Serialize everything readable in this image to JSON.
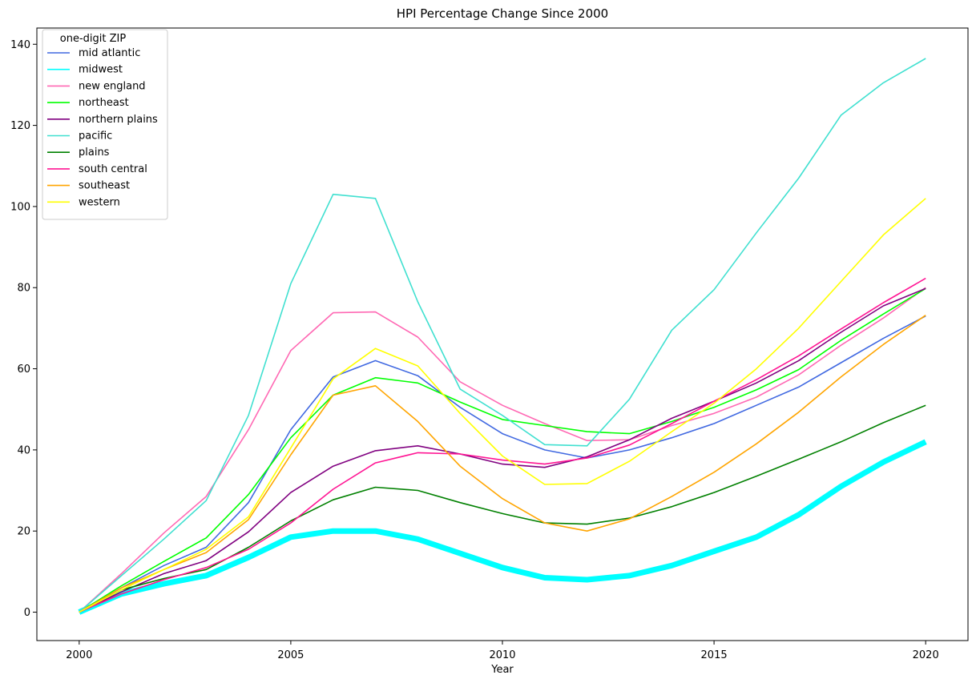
{
  "chart_data": {
    "type": "line",
    "title": "HPI Percentage Change Since 2000",
    "xlabel": "Year",
    "ylabel": "",
    "xlim": [
      1999,
      2021
    ],
    "ylim": [
      -7,
      144
    ],
    "x_ticks": [
      2000,
      2005,
      2010,
      2015,
      2020
    ],
    "y_ticks": [
      0,
      20,
      40,
      60,
      80,
      100,
      120,
      140
    ],
    "grid": false,
    "legend": {
      "title": "one-digit ZIP",
      "placement": "top-left"
    },
    "x": [
      2000,
      2001,
      2002,
      2003,
      2004,
      2005,
      2006,
      2007,
      2008,
      2009,
      2010,
      2011,
      2012,
      2013,
      2014,
      2015,
      2016,
      2017,
      2018,
      2019,
      2020
    ],
    "series": [
      {
        "name": "mid atlantic",
        "color": "#4169e1",
        "width": 1.6,
        "values": [
          0,
          6,
          11.5,
          16,
          27,
          45,
          58,
          62,
          58.3,
          50.5,
          44,
          40,
          38,
          40,
          43,
          46.5,
          51,
          55.5,
          61.5,
          67.5,
          73
        ]
      },
      {
        "name": "midwest",
        "color": "#00ffff",
        "width": 1.6,
        "values": [
          0,
          4.5,
          7,
          9,
          13.5,
          18.5,
          20,
          20,
          18,
          14.5,
          11,
          8.5,
          8,
          9,
          11.5,
          15,
          18.5,
          24,
          31,
          37,
          42
        ]
      },
      {
        "name": "new england",
        "color": "#ff69b4",
        "width": 1.6,
        "values": [
          0,
          9.5,
          19.5,
          28.5,
          45,
          64.5,
          73.8,
          74,
          67.8,
          56.8,
          51,
          46.5,
          42.3,
          42.5,
          46,
          49,
          53,
          58.5,
          65.8,
          72.5,
          80
        ]
      },
      {
        "name": "northeast",
        "color": "#00ff00",
        "width": 1.6,
        "values": [
          0,
          6.5,
          12.5,
          18.3,
          29,
          43,
          53.5,
          57.8,
          56.5,
          51.8,
          47.5,
          46,
          44.5,
          44,
          47,
          50.5,
          54.8,
          59.8,
          67,
          73.5,
          79.8
        ]
      },
      {
        "name": "northern plains",
        "color": "#800080",
        "width": 1.6,
        "values": [
          0,
          5,
          9.5,
          12.7,
          19.8,
          29.5,
          36,
          39.8,
          41,
          39,
          36.5,
          35.7,
          38.3,
          42.5,
          47.8,
          52,
          56.5,
          62,
          69,
          75.5,
          79.8
        ]
      },
      {
        "name": "pacific",
        "color": "#40e0d0",
        "width": 1.6,
        "values": [
          0,
          9,
          18,
          27.5,
          48.5,
          81,
          103,
          102,
          76.5,
          55,
          48.5,
          41.3,
          41,
          52.5,
          69.5,
          79.5,
          93.5,
          107,
          122.5,
          130.5,
          136.5
        ]
      },
      {
        "name": "plains",
        "color": "#008000",
        "width": 1.6,
        "values": [
          0,
          5.5,
          8.3,
          10.5,
          16,
          22.5,
          27.7,
          30.8,
          30,
          27,
          24.3,
          22,
          21.7,
          23.2,
          26,
          29.5,
          33.5,
          37.7,
          42,
          46.7,
          51
        ]
      },
      {
        "name": "south central",
        "color": "#ff1493",
        "width": 1.6,
        "values": [
          0,
          4.5,
          8,
          11,
          15.5,
          22,
          30.3,
          36.8,
          39.3,
          39,
          37.5,
          36.5,
          38,
          41.2,
          46.5,
          52,
          57.3,
          63.2,
          69.8,
          76.3,
          82.3
        ]
      },
      {
        "name": "southeast",
        "color": "#ffa500",
        "width": 1.6,
        "values": [
          0,
          6,
          10.5,
          14.7,
          22.8,
          38.8,
          53.5,
          55.8,
          47,
          36,
          28,
          22,
          20,
          23,
          28.5,
          34.5,
          41.5,
          49.3,
          58,
          66,
          73.2
        ]
      },
      {
        "name": "western",
        "color": "#ffff00",
        "width": 1.6,
        "values": [
          0,
          5.5,
          10.5,
          15.5,
          23.5,
          40.5,
          57.5,
          65,
          60.7,
          49,
          38.5,
          31.5,
          31.7,
          37.2,
          44.5,
          51.5,
          60,
          70,
          81.5,
          93,
          102
        ]
      }
    ],
    "emphasized_series": "midwest",
    "emphasized_width": 7
  }
}
